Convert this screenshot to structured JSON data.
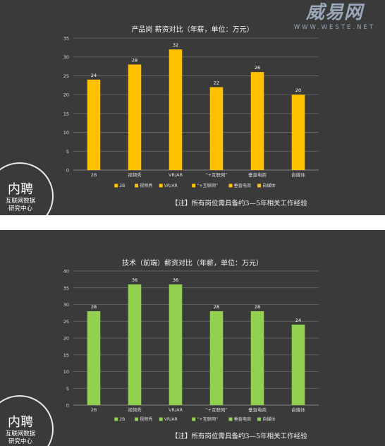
{
  "brand": {
    "name": "威易网",
    "url": "WWW.WESTE.NET"
  },
  "logo": {
    "line1": "内聘",
    "line2": "互联网数据",
    "line3": "研究中心"
  },
  "note": "【注】所有岗位需具备约3—5年相关工作经验",
  "colors": {
    "background": "#3a3a3a",
    "chart1_bar": "#ffc000",
    "chart2_bar": "#92d050",
    "grid": "#6a6a6a",
    "text": "#d9d9d9"
  },
  "chart_data": [
    {
      "type": "bar",
      "title": "产品岗 薪资对比（年薪，单位：万元）",
      "categories": [
        "2B",
        "视频秀",
        "VR/AR",
        "“+互联网”",
        "垂直电商",
        "自媒体"
      ],
      "values": [
        24,
        28,
        32,
        22,
        26,
        20
      ],
      "ylim": [
        0,
        35
      ],
      "yticks": [
        0,
        5,
        10,
        15,
        20,
        25,
        30,
        35
      ],
      "grid": true,
      "legend": "bottom",
      "color": "#ffc000"
    },
    {
      "type": "bar",
      "title": "技术（前端）薪资对比（年薪，单位：万元）",
      "categories": [
        "2B",
        "视频秀",
        "VR/AR",
        "“+互联网”",
        "垂直电商",
        "自媒体"
      ],
      "values": [
        28,
        36,
        36,
        28,
        28,
        24
      ],
      "ylim": [
        0,
        40
      ],
      "yticks": [
        0,
        5,
        10,
        15,
        20,
        25,
        30,
        35,
        40
      ],
      "grid": true,
      "legend": "bottom",
      "color": "#92d050"
    }
  ]
}
